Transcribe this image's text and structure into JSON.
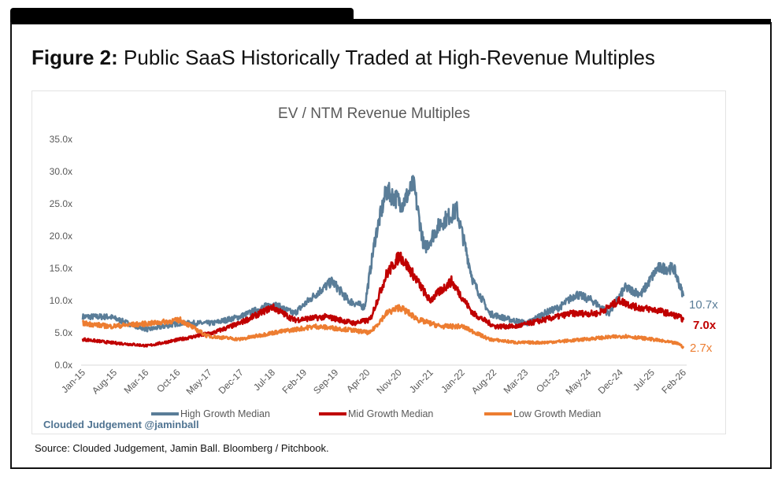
{
  "figure": {
    "label": "Figure 2:",
    "title": "Public SaaS Historically Traded at High-Revenue Multiples"
  },
  "source": "Source: Clouded Judgement, Jamin Ball. Bloomberg / Pitchbook.",
  "watermark": "Clouded Judgement @jaminball",
  "chart_data": {
    "type": "line",
    "title": "EV / NTM Revenue Multiples",
    "xlabel": "",
    "ylabel": "",
    "ylim": [
      0,
      35
    ],
    "yticks": [
      "0.0x",
      "5.0x",
      "10.0x",
      "15.0x",
      "20.0x",
      "25.0x",
      "30.0x",
      "35.0x"
    ],
    "xticks": [
      "Jan-15",
      "Aug-15",
      "Mar-16",
      "Oct-16",
      "May-17",
      "Dec-17",
      "Jul-18",
      "Feb-19",
      "Sep-19",
      "Apr-20",
      "Nov-20",
      "Jun-21",
      "Jan-22",
      "Aug-22",
      "Mar-23",
      "Oct-23",
      "May-24",
      "Dec-24",
      "Jul-25",
      "Feb-26"
    ],
    "xrange": [
      2015.0,
      2026.08
    ],
    "grid": false,
    "legend": "bottom",
    "series": [
      {
        "name": "High Growth Median",
        "color": "#5a7d98",
        "end_label": "10.7x",
        "x": [
          2015,
          2015.5,
          2016.0,
          2016.2,
          2016.8,
          2017.4,
          2017.9,
          2018.5,
          2018.9,
          2019.3,
          2019.6,
          2019.9,
          2020.2,
          2020.4,
          2020.6,
          2020.9,
          2021.1,
          2021.3,
          2021.6,
          2021.9,
          2022.2,
          2022.5,
          2022.9,
          2023.2,
          2023.5,
          2023.8,
          2024.1,
          2024.4,
          2024.7,
          2025.0,
          2025.3,
          2025.6,
          2025.9,
          2026.08
        ],
        "y": [
          7.5,
          7.5,
          6,
          5.5,
          6.5,
          6.5,
          7.5,
          9.5,
          8,
          11,
          13,
          10,
          9,
          20,
          27,
          25,
          28,
          18,
          22,
          24,
          13,
          8,
          7,
          6.5,
          8,
          9,
          11,
          10,
          8,
          12,
          11,
          15,
          15,
          10.7
        ]
      },
      {
        "name": "Mid Growth Median",
        "color": "#c00000",
        "end_label": "7.0x",
        "x": [
          2015,
          2015.5,
          2016.2,
          2016.8,
          2017.4,
          2017.9,
          2018.5,
          2018.9,
          2019.5,
          2020.0,
          2020.3,
          2020.6,
          2020.85,
          2021.1,
          2021.4,
          2021.8,
          2022.2,
          2022.6,
          2023.0,
          2023.5,
          2024.0,
          2024.5,
          2024.9,
          2025.2,
          2025.6,
          2026.0,
          2026.08
        ],
        "y": [
          4,
          3.5,
          3,
          4,
          5,
          6.5,
          9,
          7,
          7.5,
          6.5,
          7,
          14,
          17,
          14,
          10,
          13,
          8,
          6,
          6,
          7,
          8,
          8,
          10,
          9,
          8.5,
          7.5,
          7.0
        ]
      },
      {
        "name": "Low Growth Median",
        "color": "#ed7d31",
        "end_label": "2.7x",
        "x": [
          2015,
          2015.5,
          2016.3,
          2016.8,
          2017.3,
          2017.9,
          2018.5,
          2019.3,
          2019.9,
          2020.3,
          2020.6,
          2020.85,
          2021.2,
          2021.6,
          2022.0,
          2022.5,
          2023.0,
          2023.5,
          2024.0,
          2024.5,
          2025.0,
          2025.5,
          2026.0,
          2026.08
        ],
        "y": [
          6.5,
          6,
          6.5,
          7,
          4.5,
          4,
          5,
          6,
          5.5,
          5,
          8,
          9,
          7,
          6,
          6,
          4,
          3.5,
          3.5,
          3.8,
          4.2,
          4.5,
          4,
          3.3,
          2.7
        ]
      }
    ]
  }
}
